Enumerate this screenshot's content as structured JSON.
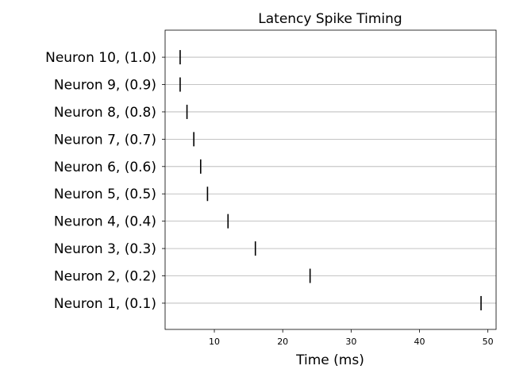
{
  "chart_data": {
    "type": "eventplot",
    "title": "Latency Spike Timing",
    "xlabel": "Time (ms)",
    "categories": [
      "Neuron 1, (0.1)",
      "Neuron 2, (0.2)",
      "Neuron 3, (0.3)",
      "Neuron 4, (0.4)",
      "Neuron 5, (0.5)",
      "Neuron 6, (0.6)",
      "Neuron 7, (0.7)",
      "Neuron 8, (0.8)",
      "Neuron 9, (0.9)",
      "Neuron 10, (1.0)"
    ],
    "values": [
      49,
      24,
      16,
      12,
      9,
      8,
      7,
      6,
      5,
      5
    ],
    "color": "#000000",
    "xlim": [
      2.8,
      51.2
    ],
    "xticks": [
      10,
      20,
      30,
      40,
      50
    ],
    "grid": true
  }
}
